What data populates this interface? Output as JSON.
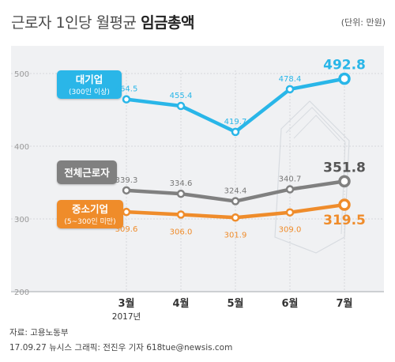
{
  "header": {
    "title_light": "근로자 1인당 월평균",
    "title_bold": "임금총액",
    "unit": "(단위: 만원)"
  },
  "footer": {
    "source": "자료: 고용노동부",
    "credit": "17.09.27  뉴시스 그래픽: 전진우 기자 618tue@newsis.com"
  },
  "chart_data": {
    "type": "line",
    "categories": [
      "3월",
      "4월",
      "5월",
      "6월",
      "7월"
    ],
    "year_label": "2017년",
    "ylim": [
      200,
      500
    ],
    "yticks": [
      200,
      300,
      400,
      500
    ],
    "grid": true,
    "series": [
      {
        "name": "대기업",
        "sublabel": "(300인 이상)",
        "color": "#29b6e8",
        "values": [
          464.5,
          455.4,
          419.7,
          478.4,
          492.8
        ],
        "labels": [
          "464.5",
          "455.4",
          "419.7",
          "478.4",
          "492.8"
        ]
      },
      {
        "name": "전체근로자",
        "sublabel": "",
        "color": "#808080",
        "values": [
          339.3,
          334.6,
          324.4,
          340.7,
          351.8
        ],
        "labels": [
          "339.3",
          "334.6",
          "324.4",
          "340.7",
          "351.8"
        ]
      },
      {
        "name": "중소기업",
        "sublabel": "(5~300인 미만)",
        "color": "#ef8c2b",
        "values": [
          309.6,
          306.0,
          301.9,
          309.0,
          319.5
        ],
        "labels": [
          "309.6",
          "306.0",
          "301.9",
          "309.0",
          "319.5"
        ]
      }
    ]
  }
}
